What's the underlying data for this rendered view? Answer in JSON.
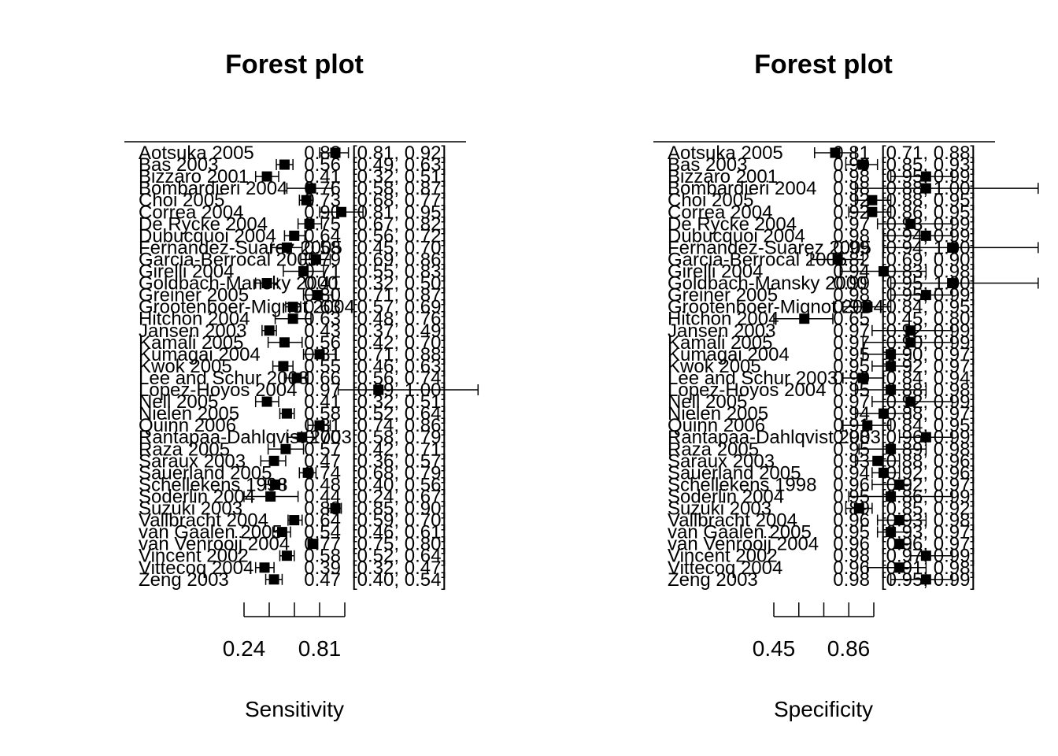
{
  "chart_data": [
    {
      "type": "forest",
      "title": "Forest plot",
      "xlabel": "Sensitivity",
      "tick_labels": [
        "0.24",
        "0.81"
      ],
      "studies": [
        {
          "label": "Aotsuka 2005",
          "est": 0.88,
          "lo": 0.81,
          "hi": 0.92
        },
        {
          "label": "Bas 2003",
          "est": 0.56,
          "lo": 0.49,
          "hi": 0.63
        },
        {
          "label": "Bizzaro 2001",
          "est": 0.41,
          "lo": 0.32,
          "hi": 0.51
        },
        {
          "label": "Bombardieri 2004",
          "est": 0.76,
          "lo": 0.58,
          "hi": 0.87
        },
        {
          "label": "Choi 2005",
          "est": 0.73,
          "lo": 0.68,
          "hi": 0.77
        },
        {
          "label": "Correa 2004",
          "est": 0.9,
          "lo": 0.81,
          "hi": 0.95
        },
        {
          "label": "De Rycke 2004",
          "est": 0.75,
          "lo": 0.67,
          "hi": 0.82
        },
        {
          "label": "Dubucquoi 2004",
          "est": 0.64,
          "lo": 0.56,
          "hi": 0.72
        },
        {
          "label": "Fernandez-Suarez 2005",
          "est": 0.58,
          "lo": 0.45,
          "hi": 0.7
        },
        {
          "label": "Garcia-Berrocal 2005",
          "est": 0.79,
          "lo": 0.69,
          "hi": 0.86
        },
        {
          "label": "Girelli 2004",
          "est": 0.71,
          "lo": 0.55,
          "hi": 0.83
        },
        {
          "label": "Goldbach-Mansky 2000",
          "est": 0.41,
          "lo": 0.32,
          "hi": 0.5
        },
        {
          "label": "Greiner 2005",
          "est": 0.8,
          "lo": 0.71,
          "hi": 0.87
        },
        {
          "label": "Grootenboer-Mignot 2004",
          "est": 0.63,
          "lo": 0.57,
          "hi": 0.69
        },
        {
          "label": "Hitchon 2004",
          "est": 0.63,
          "lo": 0.48,
          "hi": 0.76
        },
        {
          "label": "Jansen 2003",
          "est": 0.43,
          "lo": 0.37,
          "hi": 0.49
        },
        {
          "label": "Kamali 2005",
          "est": 0.56,
          "lo": 0.42,
          "hi": 0.7
        },
        {
          "label": "Kumagai 2004",
          "est": 0.81,
          "lo": 0.71,
          "hi": 0.88
        },
        {
          "label": "Kwok 2005",
          "est": 0.55,
          "lo": 0.46,
          "hi": 0.63
        },
        {
          "label": "Lee and Schur 2003",
          "est": 0.66,
          "lo": 0.56,
          "hi": 0.74
        },
        {
          "label": "Lopez-Hoyos 2004",
          "est": 0.97,
          "lo": 0.89,
          "hi": 1.0
        },
        {
          "label": "Nell 2005",
          "est": 0.41,
          "lo": 0.32,
          "hi": 0.51
        },
        {
          "label": "Nielen 2005",
          "est": 0.58,
          "lo": 0.52,
          "hi": 0.64
        },
        {
          "label": "Quinn 2006",
          "est": 0.81,
          "lo": 0.74,
          "hi": 0.86
        },
        {
          "label": "Rantapaa-Dahlqvist 2003",
          "est": 0.7,
          "lo": 0.58,
          "hi": 0.79
        },
        {
          "label": "Raza 2005",
          "est": 0.57,
          "lo": 0.42,
          "hi": 0.71
        },
        {
          "label": "Saraux 2003",
          "est": 0.47,
          "lo": 0.36,
          "hi": 0.57
        },
        {
          "label": "Sauerland 2005",
          "est": 0.74,
          "lo": 0.68,
          "hi": 0.79
        },
        {
          "label": "Schellekens 1998",
          "est": 0.48,
          "lo": 0.4,
          "hi": 0.56
        },
        {
          "label": "Soderlin 2004",
          "est": 0.44,
          "lo": 0.24,
          "hi": 0.67
        },
        {
          "label": "Suzuki 2003",
          "est": 0.88,
          "lo": 0.85,
          "hi": 0.9
        },
        {
          "label": "Vallbracht 2004",
          "est": 0.64,
          "lo": 0.59,
          "hi": 0.7
        },
        {
          "label": "van Gaalen 2005",
          "est": 0.54,
          "lo": 0.46,
          "hi": 0.61
        },
        {
          "label": "van Venrooij 2004",
          "est": 0.77,
          "lo": 0.75,
          "hi": 0.8
        },
        {
          "label": "Vincent 2002",
          "est": 0.58,
          "lo": 0.52,
          "hi": 0.64
        },
        {
          "label": "Vittecoq 2004",
          "est": 0.39,
          "lo": 0.32,
          "hi": 0.47
        },
        {
          "label": "Zeng 2003",
          "est": 0.47,
          "lo": 0.4,
          "hi": 0.54
        }
      ]
    },
    {
      "type": "forest",
      "title": "Forest plot",
      "xlabel": "Specificity",
      "tick_labels": [
        "0.45",
        "0.86"
      ],
      "studies": [
        {
          "label": "Aotsuka 2005",
          "est": 0.81,
          "lo": 0.71,
          "hi": 0.88
        },
        {
          "label": "Bas 2003",
          "est": 0.9,
          "lo": 0.85,
          "hi": 0.93
        },
        {
          "label": "Bizzaro 2001",
          "est": 0.98,
          "lo": 0.95,
          "hi": 0.99
        },
        {
          "label": "Bombardieri 2004",
          "est": 0.98,
          "lo": 0.88,
          "hi": 1.0
        },
        {
          "label": "Choi 2005",
          "est": 0.92,
          "lo": 0.88,
          "hi": 0.95
        },
        {
          "label": "Correa 2004",
          "est": 0.92,
          "lo": 0.86,
          "hi": 0.95
        },
        {
          "label": "De Rycke 2004",
          "est": 0.97,
          "lo": 0.93,
          "hi": 0.99
        },
        {
          "label": "Dubucquoi 2004",
          "est": 0.98,
          "lo": 0.94,
          "hi": 0.99
        },
        {
          "label": "Fernandez-Suarez 2005",
          "est": 0.99,
          "lo": 0.94,
          "hi": 1.0
        },
        {
          "label": "Garcia-Berrocal 2005",
          "est": 0.82,
          "lo": 0.69,
          "hi": 0.9
        },
        {
          "label": "Girelli 2004",
          "est": 0.94,
          "lo": 0.83,
          "hi": 0.98
        },
        {
          "label": "Goldbach-Mansky 2000",
          "est": 0.99,
          "lo": 0.95,
          "hi": 1.0
        },
        {
          "label": "Greiner 2005",
          "est": 0.98,
          "lo": 0.95,
          "hi": 0.99
        },
        {
          "label": "Grootenboer-Mignot 2004",
          "est": 0.91,
          "lo": 0.84,
          "hi": 0.95
        },
        {
          "label": "Hitchon 2004",
          "est": 0.65,
          "lo": 0.45,
          "hi": 0.8
        },
        {
          "label": "Jansen 2003",
          "est": 0.97,
          "lo": 0.92,
          "hi": 0.99
        },
        {
          "label": "Kamali 2005",
          "est": 0.97,
          "lo": 0.9,
          "hi": 0.99
        },
        {
          "label": "Kumagai 2004",
          "est": 0.95,
          "lo": 0.9,
          "hi": 0.97
        },
        {
          "label": "Kwok 2005",
          "est": 0.95,
          "lo": 0.92,
          "hi": 0.97
        },
        {
          "label": "Lee and Schur 2003",
          "est": 0.9,
          "lo": 0.84,
          "hi": 0.94
        },
        {
          "label": "Lopez-Hoyos 2004",
          "est": 0.95,
          "lo": 0.88,
          "hi": 0.98
        },
        {
          "label": "Nell 2005",
          "est": 0.97,
          "lo": 0.92,
          "hi": 0.99
        },
        {
          "label": "Nielen 2005",
          "est": 0.94,
          "lo": 0.88,
          "hi": 0.97
        },
        {
          "label": "Quinn 2006",
          "est": 0.91,
          "lo": 0.84,
          "hi": 0.95
        },
        {
          "label": "Rantapaa-Dahlqvist 2003",
          "est": 0.98,
          "lo": 0.96,
          "hi": 0.99
        },
        {
          "label": "Raza 2005",
          "est": 0.95,
          "lo": 0.89,
          "hi": 0.98
        },
        {
          "label": "Saraux 2003",
          "est": 0.93,
          "lo": 0.88,
          "hi": 0.96
        },
        {
          "label": "Sauerland 2005",
          "est": 0.94,
          "lo": 0.92,
          "hi": 0.96
        },
        {
          "label": "Schellekens 1998",
          "est": 0.96,
          "lo": 0.92,
          "hi": 0.97
        },
        {
          "label": "Soderlin 2004",
          "est": 0.95,
          "lo": 0.86,
          "hi": 0.99
        },
        {
          "label": "Suzuki 2003",
          "est": 0.89,
          "lo": 0.85,
          "hi": 0.92
        },
        {
          "label": "Vallbracht 2004",
          "est": 0.96,
          "lo": 0.93,
          "hi": 0.98
        },
        {
          "label": "van Gaalen 2005",
          "est": 0.95,
          "lo": 0.93,
          "hi": 0.97
        },
        {
          "label": "van Venrooij 2004",
          "est": 0.96,
          "lo": 0.96,
          "hi": 0.97
        },
        {
          "label": "Vincent 2002",
          "est": 0.98,
          "lo": 0.97,
          "hi": 0.99
        },
        {
          "label": "Vittecoq 2004",
          "est": 0.96,
          "lo": 0.91,
          "hi": 0.98
        },
        {
          "label": "Zeng 2003",
          "est": 0.98,
          "lo": 0.95,
          "hi": 0.99
        }
      ]
    }
  ]
}
